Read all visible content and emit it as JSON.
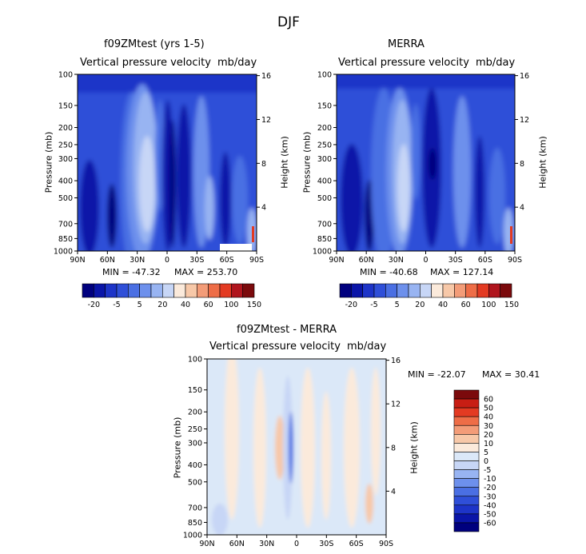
{
  "figure": {
    "title": "DJF"
  },
  "colors": {
    "abs_scale": [
      "#00007e",
      "#0a15a8",
      "#1d34c8",
      "#2f4fd8",
      "#4a6fe3",
      "#6d90ec",
      "#98b4f2",
      "#c7d6f6",
      "#fbeadb",
      "#f7c8a8",
      "#f39c78",
      "#ee6d47",
      "#e33a22",
      "#b0151d",
      "#7b0a0c"
    ],
    "diff_scale": [
      "#00007e",
      "#0a15a8",
      "#1d34c8",
      "#2f4fd8",
      "#4a6fe3",
      "#6d90ec",
      "#98b4f2",
      "#c7d6f6",
      "#dbe8f8",
      "#fbeadb",
      "#f7c8a8",
      "#f39c78",
      "#ee6d47",
      "#e33a22",
      "#c81e14",
      "#7b0a0c"
    ]
  },
  "chart_data": [
    {
      "type": "heatmap",
      "title": "f09ZMtest (yrs 1-5)",
      "subtitle_left": "Vertical pressure velocity",
      "subtitle_right": "mb/day",
      "xlabel": "",
      "ylabel": "Pressure (mb)",
      "ylabel_right": "Height (km)",
      "x_ticks": [
        "90N",
        "60N",
        "30N",
        "0",
        "30S",
        "60S",
        "90S"
      ],
      "y_ticks": [
        100,
        150,
        200,
        250,
        300,
        400,
        500,
        700,
        850,
        1000
      ],
      "y_ticks_right": [
        4,
        8,
        12,
        16
      ],
      "min_label": "MIN = -47.32",
      "max_label": "MAX = 253.70",
      "legend_labels": [
        "-20",
        "-5",
        "5",
        "20",
        "40",
        "60",
        "100",
        "150"
      ]
    },
    {
      "type": "heatmap",
      "title": "MERRA",
      "subtitle_left": "Vertical pressure velocity",
      "subtitle_right": "mb/day",
      "xlabel": "",
      "ylabel": "Pressure (mb)",
      "ylabel_right": "Height (km)",
      "x_ticks": [
        "90N",
        "60N",
        "30N",
        "0",
        "30S",
        "60S",
        "90S"
      ],
      "y_ticks": [
        100,
        150,
        200,
        250,
        300,
        400,
        500,
        700,
        850,
        1000
      ],
      "y_ticks_right": [
        4,
        8,
        12,
        16
      ],
      "min_label": "MIN = -40.68",
      "max_label": "MAX = 127.14",
      "legend_labels": [
        "-20",
        "-5",
        "5",
        "20",
        "40",
        "60",
        "100",
        "150"
      ]
    },
    {
      "type": "heatmap",
      "title": "f09ZMtest - MERRA",
      "subtitle_left": "Vertical pressure velocity",
      "subtitle_right": "mb/day",
      "xlabel": "",
      "ylabel": "Pressure (mb)",
      "ylabel_right": "Height (km)",
      "x_ticks": [
        "90N",
        "60N",
        "30N",
        "0",
        "30S",
        "60S",
        "90S"
      ],
      "y_ticks": [
        100,
        150,
        200,
        250,
        300,
        400,
        500,
        700,
        850,
        1000
      ],
      "y_ticks_right": [
        4,
        8,
        12,
        16
      ],
      "min_label": "MIN = -22.07",
      "max_label": "MAX = 30.41",
      "legend_labels": [
        "60",
        "50",
        "40",
        "30",
        "20",
        "10",
        "5",
        "0",
        "-5",
        "-10",
        "-20",
        "-30",
        "-40",
        "-50",
        "-60"
      ]
    }
  ]
}
